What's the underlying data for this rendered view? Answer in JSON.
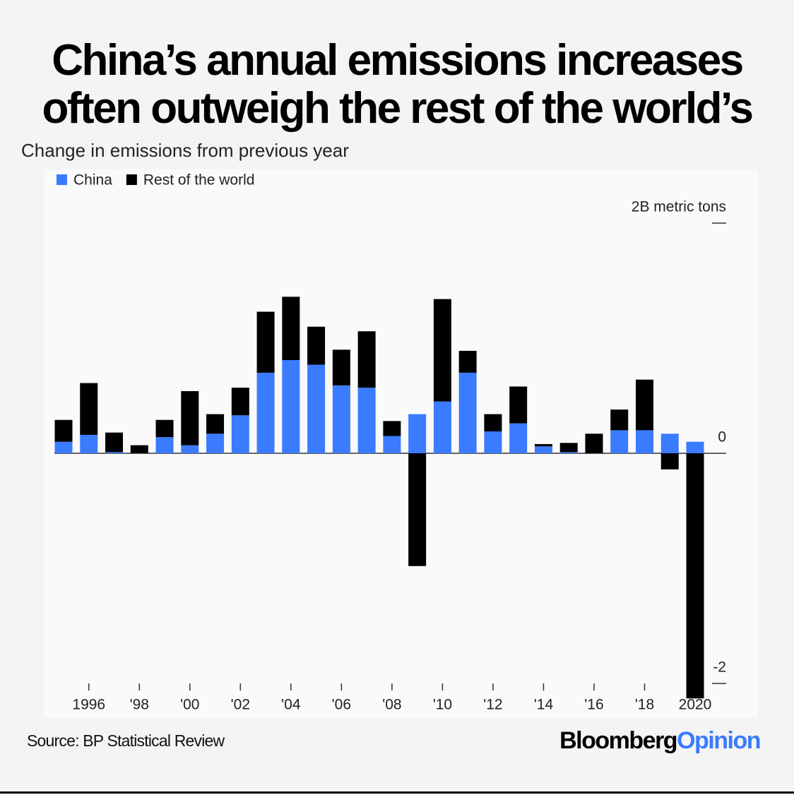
{
  "chart_data": {
    "type": "stacked_bar",
    "title": "China’s annual emissions increases often outweigh the rest of the world’s",
    "subtitle": "Change in emissions from previous year",
    "categories": [
      null,
      "1996",
      null,
      "'98",
      null,
      "'00",
      null,
      "'02",
      null,
      "'04",
      null,
      "'06",
      null,
      "'08",
      null,
      "'10",
      null,
      "'12",
      null,
      "'14",
      null,
      "'16",
      null,
      "'18",
      null,
      "2020"
    ],
    "series": [
      {
        "name": "China",
        "color": "#3a7bff",
        "values": [
          0.1,
          0.16,
          0.01,
          0,
          0.14,
          0.07,
          0.17,
          0.33,
          0.7,
          0.81,
          0.77,
          0.59,
          0.57,
          0.15,
          0.34,
          0.45,
          0.7,
          0.19,
          0.26,
          0.06,
          0.01,
          0,
          0.2,
          0.2,
          0.17,
          0.1
        ]
      },
      {
        "name": "Rest of the world",
        "color": "#000000",
        "values": [
          0.19,
          0.45,
          0.17,
          0.07,
          0.15,
          0.47,
          0.17,
          0.24,
          0.53,
          0.55,
          0.33,
          0.31,
          0.49,
          0.13,
          -0.98,
          0.89,
          0.19,
          0.15,
          0.32,
          0.02,
          0.08,
          0.17,
          0.18,
          0.44,
          -0.14,
          -2.13
        ]
      }
    ],
    "ylim": [
      -2,
      2
    ],
    "yticks": [
      {
        "value": -2,
        "label": "-2"
      },
      0,
      {
        "value": 2,
        "label": "2B metric tons"
      }
    ],
    "legend": "top-left"
  },
  "footer": {
    "source": "Source: BP Statistical Review",
    "brand": "Bloomberg",
    "brand_accent": "Opinion"
  }
}
